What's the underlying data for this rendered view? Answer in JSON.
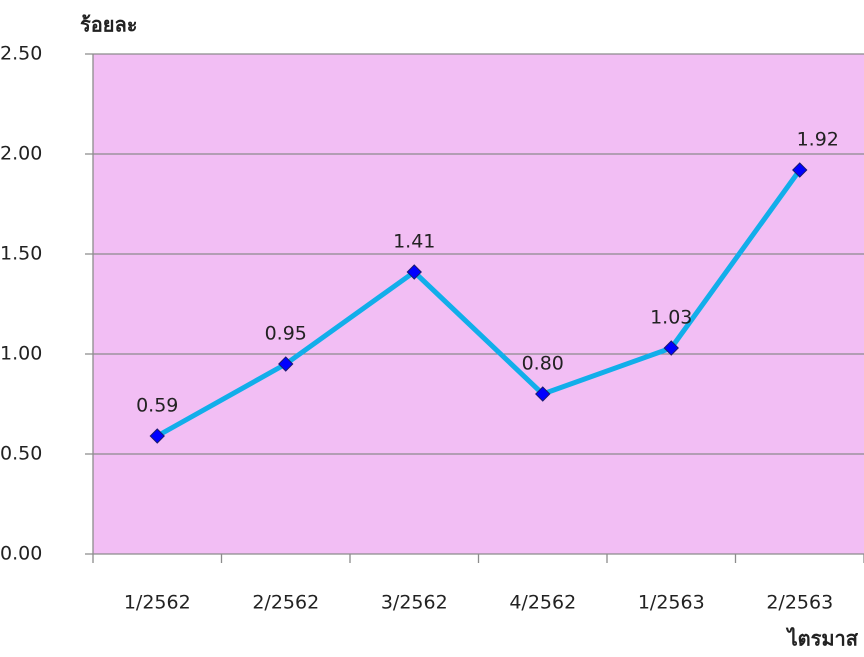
{
  "chart_data": {
    "type": "line",
    "y_label": "ร้อยละ",
    "x_label": "ไตรมาส",
    "categories": [
      "1/2562",
      "2/2562",
      "3/2562",
      "4/2562",
      "1/2563",
      "2/2563"
    ],
    "values": [
      0.59,
      0.95,
      1.41,
      0.8,
      1.03,
      1.92
    ],
    "value_labels": [
      "0.59",
      "0.95",
      "1.41",
      "0.80",
      "1.03",
      "1.92"
    ],
    "color": "#12aeea",
    "marker_color": "#0000ff",
    "ylim": [
      0,
      2.5
    ],
    "yticks": [
      {
        "value": 0,
        "label": "0.00"
      },
      {
        "value": 0.5,
        "label": "0.50"
      },
      {
        "value": 1,
        "label": "1.00"
      },
      {
        "value": 1.5,
        "label": "1.50"
      },
      {
        "value": 2,
        "label": "2.00"
      },
      {
        "value": 2.5,
        "label": "2.50"
      }
    ],
    "grid": true
  }
}
